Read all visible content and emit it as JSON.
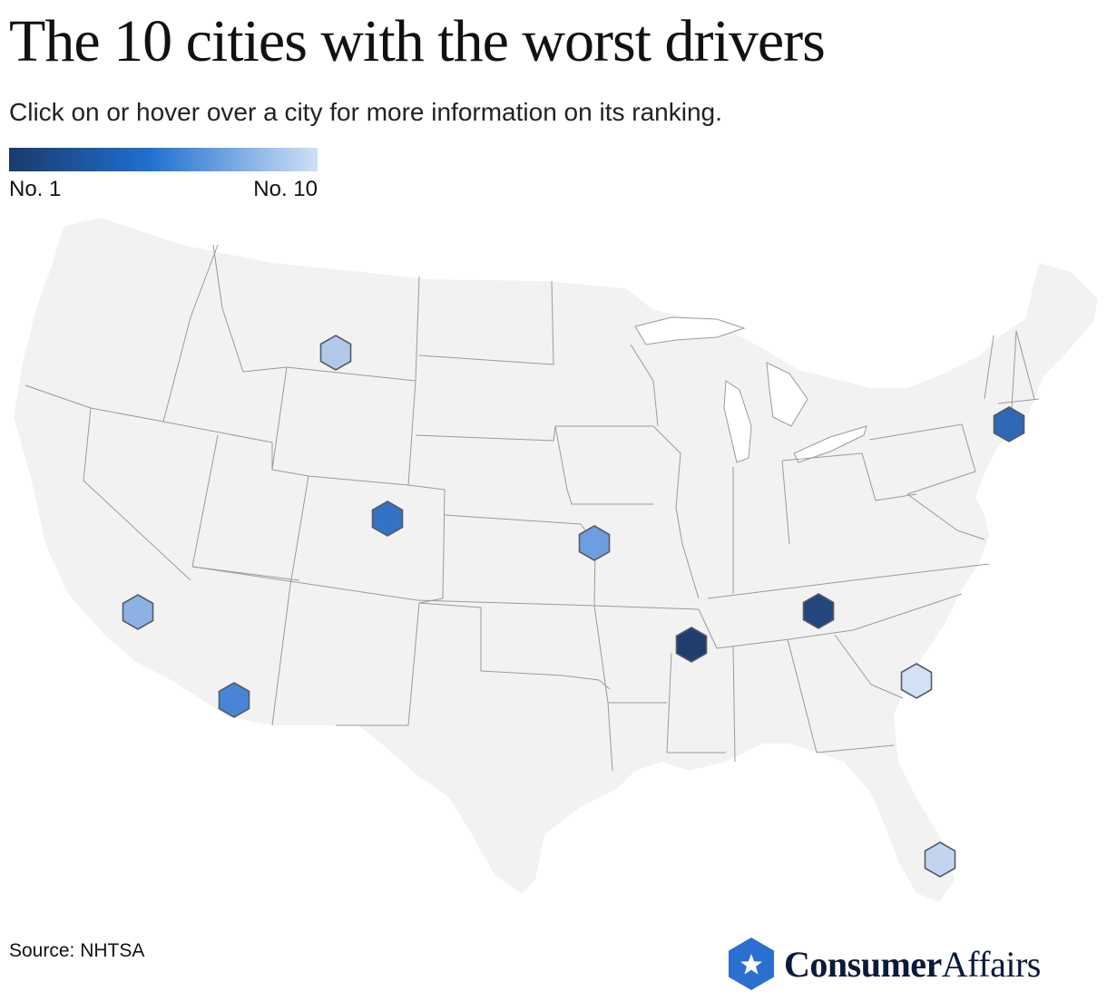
{
  "header": {
    "title": "The 10 cities with the worst drivers",
    "subtitle": "Click on or hover over a city for more information on its ranking."
  },
  "legend": {
    "min_label": "No. 1",
    "max_label": "No. 10",
    "color_start": "#1b3a6b",
    "color_mid": "#1e6fd0",
    "color_end": "#cfe0f5"
  },
  "map": {
    "land_color": "#f2f2f2",
    "border_color": "#9a9a9a",
    "marker_shape": "hexagon",
    "markers": [
      {
        "rank": 1,
        "color": "#1f3e6e"
      },
      {
        "rank": 2,
        "color": "#23467d"
      },
      {
        "rank": 3,
        "color": "#2f68b4"
      },
      {
        "rank": 4,
        "color": "#3373c6"
      },
      {
        "rank": 5,
        "color": "#4a84d6"
      },
      {
        "rank": 6,
        "color": "#6c9ee0"
      },
      {
        "rank": 7,
        "color": "#8eb1e3"
      },
      {
        "rank": 8,
        "color": "#b2c9ea"
      },
      {
        "rank": 9,
        "color": "#c3d5ee"
      },
      {
        "rank": 10,
        "color": "#d2e1f4"
      }
    ]
  },
  "footer": {
    "source": "Source: NHTSA",
    "brand_bold": "Consumer",
    "brand_light": "Affairs",
    "brand_color": "#2b6fd1",
    "brand_icon": "star-badge-icon"
  }
}
